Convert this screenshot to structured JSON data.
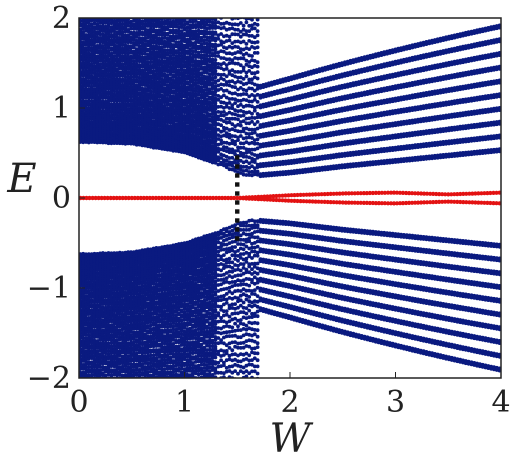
{
  "chart_data": {
    "type": "scatter",
    "title": "",
    "xlabel": "W",
    "ylabel": "E",
    "xlim": [
      0,
      4
    ],
    "ylim": [
      -2,
      2
    ],
    "x_ticks": [
      0,
      1,
      2,
      3,
      4
    ],
    "y_ticks": [
      2,
      1,
      0,
      -1,
      -2
    ],
    "x_tick_labels": [
      "0",
      "1",
      "2",
      "3",
      "4"
    ],
    "y_tick_labels": [
      "2",
      "1",
      "0",
      "−1",
      "−2"
    ],
    "grid": false,
    "legend": "none",
    "colors": {
      "bulk": "#0a1a80",
      "edge": "#e31212",
      "marker": "#111111",
      "frame": "#222222"
    },
    "series": [
      {
        "role": "bulk",
        "description_values": "dense band of eigenvalues filling |E| > gap, gap edge follows points below",
        "gap_edge_x": [
          0.0,
          0.5,
          1.0,
          1.3,
          1.55,
          1.7,
          2.0,
          2.5,
          3.0,
          3.5,
          4.0
        ],
        "gap_edge_y": [
          0.62,
          0.6,
          0.5,
          0.38,
          0.26,
          0.24,
          0.27,
          0.34,
          0.4,
          0.46,
          0.52
        ]
      },
      {
        "role": "edge",
        "x": [
          0.0,
          0.5,
          1.0,
          1.5,
          2.0,
          2.5,
          3.0,
          3.5,
          4.0
        ],
        "y": [
          0.0,
          0.0,
          0.0,
          0.0,
          0.0,
          0.0,
          0.0,
          0.0,
          0.0
        ],
        "splitting": [
          0.0,
          0.0,
          0.0,
          0.0,
          0.03,
          0.05,
          0.06,
          0.04,
          0.06
        ]
      },
      {
        "role": "marker",
        "type": "vertical-dotted-line",
        "x": 1.5,
        "y_range": [
          -0.45,
          0.45
        ]
      }
    ]
  }
}
